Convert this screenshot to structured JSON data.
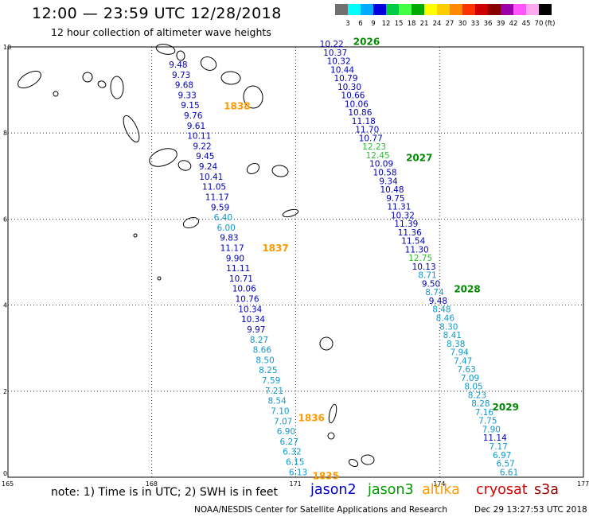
{
  "header": {
    "title": "12:00 — 23:59 UTC 12/28/2018",
    "subtitle": "12 hour collection of altimeter wave heights"
  },
  "colorbar": {
    "unit": "(ft)",
    "labels": [
      "3",
      "6",
      "9",
      "12",
      "15",
      "18",
      "21",
      "24",
      "27",
      "30",
      "33",
      "36",
      "39",
      "42",
      "45",
      "70"
    ],
    "colors": [
      "#707070",
      "#00ffff",
      "#00aaff",
      "#0000dd",
      "#00cc44",
      "#44ff44",
      "#00aa00",
      "#ffff00",
      "#ffcc00",
      "#ff8800",
      "#ff3300",
      "#cc0000",
      "#880000",
      "#9900aa",
      "#ff55ff",
      "#ffaaee",
      "#000000"
    ]
  },
  "map": {
    "xlim": [
      165,
      177
    ],
    "ylim": [
      0,
      10
    ],
    "x_ticks": [
      "165",
      "168",
      "171",
      "174",
      "177"
    ],
    "y_ticks": [
      "0",
      "2",
      "4",
      "6",
      "8",
      "10"
    ],
    "grid": true,
    "tracks": [
      {
        "id_label": "1838",
        "id_color": "#ff9900",
        "start": [
          168.55,
          9.52
        ],
        "end": [
          171.05,
          0.05
        ],
        "label_pos": [
          169.5,
          8.55
        ],
        "values": [
          "9.48",
          "9.73",
          "9.68",
          "9.33",
          "9.15",
          "9.76",
          "9.61",
          "10.11",
          "9.22",
          "9.45",
          "9.24",
          "10.41",
          "11.05",
          "11.17",
          "9.59",
          "6.40",
          "6.00",
          "9.83",
          "11.17",
          "9.90",
          "11.11",
          "10.71",
          "10.06",
          "10.76",
          "10.34",
          "10.34",
          "9.97",
          "8.27",
          "8.66",
          "8.50",
          "8.25",
          "7.59",
          "7.21",
          "8.54",
          "7.10",
          "7.07",
          "6.90",
          "6.27",
          "6.32",
          "6.15",
          "6.13"
        ]
      },
      {
        "id_label": "2026",
        "id_color": "#008800",
        "start": [
          171.75,
          10.0
        ],
        "end": [
          175.45,
          0.05
        ],
        "label_pos": [
          172.2,
          10.05
        ],
        "values": [
          "10.22",
          "10.37",
          "10.32",
          "10.44",
          "10.79",
          "10.30",
          "10.66",
          "10.06",
          "10.86",
          "11.18",
          "11.70",
          "10.77",
          "12.23",
          "12.45",
          "10.09",
          "10.58",
          "9.34",
          "10.48",
          "9.75",
          "11.31",
          "10.32",
          "11.39",
          "11.36",
          "11.54",
          "11.30",
          "12.75",
          "10.13",
          "8.71",
          "9.50",
          "8.74",
          "9.48",
          "8.48",
          "8.46",
          "8.30",
          "8.41",
          "8.38",
          "7.94",
          "7.47",
          "7.63",
          "7.09",
          "8.05",
          "8.23",
          "8.28",
          "7.16",
          "7.75",
          "7.90",
          "11.14",
          "7.17",
          "6.97",
          "6.57",
          "6.61"
        ]
      }
    ],
    "pass_labels": [
      {
        "text": "1837",
        "color": "#ff9900",
        "pos": [
          170.3,
          5.25
        ]
      },
      {
        "text": "1836",
        "color": "#ff9900",
        "pos": [
          171.05,
          1.3
        ]
      },
      {
        "text": "1835",
        "color": "#ff9900",
        "pos": [
          171.35,
          -0.05
        ]
      },
      {
        "text": "2027",
        "color": "#008800",
        "pos": [
          173.3,
          7.35
        ]
      },
      {
        "text": "2028",
        "color": "#008800",
        "pos": [
          174.3,
          4.3
        ]
      },
      {
        "text": "2029",
        "color": "#008800",
        "pos": [
          175.1,
          1.55
        ]
      }
    ]
  },
  "footer": {
    "note": "note:  1) Time is in UTC;  2) SWH is in feet",
    "satellites": [
      {
        "name": "jason2",
        "color": "#0000cc"
      },
      {
        "name": "jason3",
        "color": "#009900"
      },
      {
        "name": "altika",
        "color": "#ff9900"
      },
      {
        "name": "cryosat",
        "color": "#dd0000"
      },
      {
        "name": "s3a",
        "color": "#990000"
      }
    ],
    "credit": "NOAA/NESDIS Center for Satellite Applications and Research",
    "timestamp": "Dec 29 13:27:53 UTC 2018"
  }
}
